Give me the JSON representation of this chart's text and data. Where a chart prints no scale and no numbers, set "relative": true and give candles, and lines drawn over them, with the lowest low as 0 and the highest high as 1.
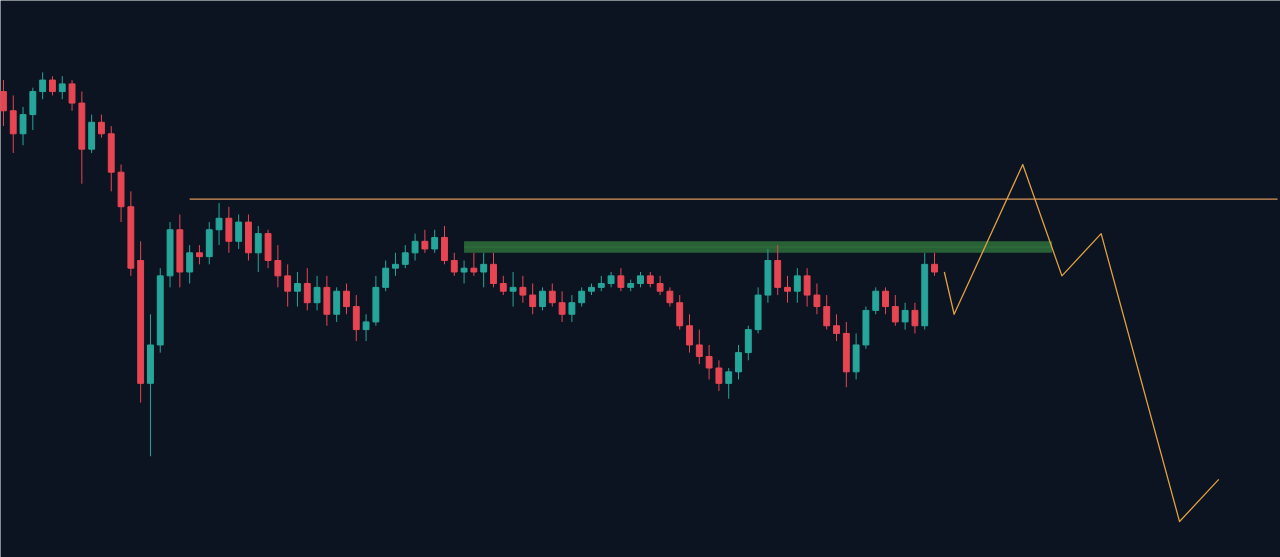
{
  "chart_data": {
    "type": "candlestick",
    "relative": true,
    "tick_labels": false,
    "grid": false,
    "categories": [
      null,
      null,
      null,
      null,
      null,
      null,
      null,
      null,
      null,
      null,
      null,
      null,
      null,
      null,
      null,
      null,
      null,
      null,
      null,
      null,
      null,
      null,
      null,
      null,
      null,
      null,
      null,
      null,
      null,
      null,
      null,
      null,
      null,
      null,
      null,
      null,
      null,
      null,
      null,
      null,
      null,
      null,
      null,
      null,
      null,
      null,
      null,
      null,
      null,
      null,
      null,
      null,
      null,
      null,
      null,
      null,
      null,
      null,
      null,
      null,
      null,
      null,
      null,
      null,
      null,
      null,
      null,
      null,
      null,
      null,
      null,
      null,
      null,
      null,
      null,
      null,
      null,
      null,
      null,
      null,
      null,
      null,
      null,
      null,
      null,
      null,
      null,
      null,
      null,
      null,
      null,
      null,
      null,
      null,
      null,
      null,
      null,
      null,
      null,
      null,
      null,
      null,
      null,
      null,
      null,
      null,
      null,
      null,
      null,
      null,
      null,
      null,
      null,
      null,
      null,
      null,
      null,
      null,
      null,
      null,
      null,
      null,
      null,
      null,
      null,
      null,
      null,
      null,
      null,
      null,
      null
    ],
    "ohlc": [
      [
        0.95,
        0.98,
        0.86,
        0.9
      ],
      [
        0.9,
        0.94,
        0.79,
        0.84
      ],
      [
        0.84,
        0.91,
        0.81,
        0.89
      ],
      [
        0.89,
        0.96,
        0.85,
        0.95
      ],
      [
        0.95,
        1.0,
        0.93,
        0.98
      ],
      [
        0.98,
        0.99,
        0.94,
        0.95
      ],
      [
        0.95,
        0.99,
        0.93,
        0.97
      ],
      [
        0.97,
        0.98,
        0.9,
        0.92
      ],
      [
        0.92,
        0.95,
        0.71,
        0.8
      ],
      [
        0.8,
        0.89,
        0.79,
        0.87
      ],
      [
        0.87,
        0.89,
        0.83,
        0.84
      ],
      [
        0.84,
        0.86,
        0.69,
        0.74
      ],
      [
        0.74,
        0.76,
        0.61,
        0.65
      ],
      [
        0.65,
        0.69,
        0.47,
        0.49
      ],
      [
        0.51,
        0.56,
        0.14,
        0.19
      ],
      [
        0.19,
        0.37,
        0.0,
        0.29
      ],
      [
        0.29,
        0.49,
        0.27,
        0.47
      ],
      [
        0.47,
        0.61,
        0.44,
        0.59
      ],
      [
        0.59,
        0.63,
        0.44,
        0.48
      ],
      [
        0.48,
        0.55,
        0.45,
        0.53
      ],
      [
        0.53,
        0.55,
        0.5,
        0.52
      ],
      [
        0.52,
        0.61,
        0.5,
        0.59
      ],
      [
        0.59,
        0.66,
        0.55,
        0.62
      ],
      [
        0.62,
        0.65,
        0.53,
        0.56
      ],
      [
        0.56,
        0.63,
        0.54,
        0.61
      ],
      [
        0.61,
        0.63,
        0.51,
        0.53
      ],
      [
        0.53,
        0.6,
        0.48,
        0.58
      ],
      [
        0.58,
        0.59,
        0.49,
        0.51
      ],
      [
        0.51,
        0.55,
        0.44,
        0.47
      ],
      [
        0.47,
        0.5,
        0.39,
        0.43
      ],
      [
        0.43,
        0.48,
        0.39,
        0.45
      ],
      [
        0.45,
        0.49,
        0.38,
        0.4
      ],
      [
        0.4,
        0.47,
        0.38,
        0.44
      ],
      [
        0.44,
        0.47,
        0.34,
        0.37
      ],
      [
        0.37,
        0.44,
        0.35,
        0.43
      ],
      [
        0.43,
        0.45,
        0.37,
        0.39
      ],
      [
        0.39,
        0.42,
        0.3,
        0.33
      ],
      [
        0.33,
        0.37,
        0.3,
        0.35
      ],
      [
        0.35,
        0.47,
        0.34,
        0.44
      ],
      [
        0.44,
        0.51,
        0.43,
        0.49
      ],
      [
        0.49,
        0.53,
        0.47,
        0.5
      ],
      [
        0.5,
        0.55,
        0.49,
        0.53
      ],
      [
        0.53,
        0.58,
        0.51,
        0.56
      ],
      [
        0.56,
        0.59,
        0.53,
        0.54
      ],
      [
        0.54,
        0.59,
        0.53,
        0.57
      ],
      [
        0.57,
        0.6,
        0.5,
        0.51
      ],
      [
        0.51,
        0.53,
        0.47,
        0.48
      ],
      [
        0.48,
        0.51,
        0.45,
        0.49
      ],
      [
        0.49,
        0.53,
        0.47,
        0.48
      ],
      [
        0.48,
        0.53,
        0.44,
        0.5
      ],
      [
        0.5,
        0.53,
        0.44,
        0.45
      ],
      [
        0.45,
        0.47,
        0.42,
        0.43
      ],
      [
        0.43,
        0.48,
        0.39,
        0.44
      ],
      [
        0.44,
        0.47,
        0.4,
        0.42
      ],
      [
        0.42,
        0.45,
        0.37,
        0.39
      ],
      [
        0.39,
        0.44,
        0.38,
        0.43
      ],
      [
        0.43,
        0.45,
        0.39,
        0.4
      ],
      [
        0.4,
        0.43,
        0.35,
        0.37
      ],
      [
        0.37,
        0.42,
        0.35,
        0.4
      ],
      [
        0.4,
        0.44,
        0.39,
        0.43
      ],
      [
        0.43,
        0.45,
        0.42,
        0.44
      ],
      [
        0.44,
        0.47,
        0.43,
        0.45
      ],
      [
        0.45,
        0.48,
        0.44,
        0.47
      ],
      [
        0.47,
        0.49,
        0.43,
        0.44
      ],
      [
        0.44,
        0.46,
        0.43,
        0.45
      ],
      [
        0.45,
        0.48,
        0.44,
        0.47
      ],
      [
        0.47,
        0.48,
        0.44,
        0.45
      ],
      [
        0.45,
        0.47,
        0.42,
        0.43
      ],
      [
        0.43,
        0.44,
        0.39,
        0.4
      ],
      [
        0.4,
        0.42,
        0.33,
        0.34
      ],
      [
        0.34,
        0.37,
        0.27,
        0.29
      ],
      [
        0.29,
        0.33,
        0.24,
        0.26
      ],
      [
        0.26,
        0.29,
        0.2,
        0.23
      ],
      [
        0.23,
        0.25,
        0.17,
        0.19
      ],
      [
        0.19,
        0.23,
        0.15,
        0.22
      ],
      [
        0.22,
        0.29,
        0.2,
        0.27
      ],
      [
        0.27,
        0.34,
        0.25,
        0.33
      ],
      [
        0.33,
        0.44,
        0.32,
        0.42
      ],
      [
        0.42,
        0.54,
        0.4,
        0.51
      ],
      [
        0.51,
        0.55,
        0.42,
        0.44
      ],
      [
        0.44,
        0.47,
        0.4,
        0.43
      ],
      [
        0.43,
        0.49,
        0.4,
        0.47
      ],
      [
        0.47,
        0.49,
        0.39,
        0.42
      ],
      [
        0.42,
        0.45,
        0.37,
        0.39
      ],
      [
        0.39,
        0.42,
        0.33,
        0.34
      ],
      [
        0.34,
        0.37,
        0.3,
        0.32
      ],
      [
        0.32,
        0.35,
        0.18,
        0.22
      ],
      [
        0.22,
        0.32,
        0.2,
        0.29
      ],
      [
        0.29,
        0.39,
        0.28,
        0.38
      ],
      [
        0.38,
        0.44,
        0.37,
        0.43
      ],
      [
        0.43,
        0.44,
        0.37,
        0.39
      ],
      [
        0.39,
        0.42,
        0.34,
        0.35
      ],
      [
        0.35,
        0.4,
        0.33,
        0.38
      ],
      [
        0.38,
        0.4,
        0.32,
        0.34
      ],
      [
        0.34,
        0.53,
        0.33,
        0.5
      ],
      [
        0.5,
        0.53,
        0.47,
        0.48
      ],
      null,
      null,
      null,
      null,
      null,
      null,
      null,
      null,
      null,
      null,
      null,
      null,
      null,
      null,
      null,
      null,
      null,
      null,
      null,
      null,
      null,
      null,
      null,
      null,
      null,
      null,
      null,
      null,
      null,
      null,
      null,
      null,
      null,
      null,
      null
    ],
    "colors": [
      "#e84552",
      "#e84552",
      "#26a69a",
      "#26a69a",
      "#26a69a",
      "#e84552",
      "#26a69a",
      "#e84552",
      "#e84552",
      "#26a69a",
      "#e84552",
      "#e84552",
      "#e84552",
      "#e84552",
      "#e84552",
      "#26a69a",
      "#26a69a",
      "#26a69a",
      "#e84552",
      "#26a69a",
      "#e84552",
      "#26a69a",
      "#26a69a",
      "#e84552",
      "#26a69a",
      "#e84552",
      "#26a69a",
      "#e84552",
      "#e84552",
      "#e84552",
      "#26a69a",
      "#e84552",
      "#26a69a",
      "#e84552",
      "#26a69a",
      "#e84552",
      "#e84552",
      "#26a69a",
      "#26a69a",
      "#26a69a",
      "#26a69a",
      "#26a69a",
      "#26a69a",
      "#e84552",
      "#26a69a",
      "#e84552",
      "#e84552",
      "#26a69a",
      "#e84552",
      "#26a69a",
      "#e84552",
      "#e84552",
      "#26a69a",
      "#e84552",
      "#e84552",
      "#26a69a",
      "#e84552",
      "#e84552",
      "#26a69a",
      "#26a69a",
      "#26a69a",
      "#26a69a",
      "#26a69a",
      "#e84552",
      "#26a69a",
      "#26a69a",
      "#e84552",
      "#e84552",
      "#e84552",
      "#e84552",
      "#e84552",
      "#e84552",
      "#e84552",
      "#e84552",
      "#26a69a",
      "#26a69a",
      "#26a69a",
      "#26a69a",
      "#26a69a",
      "#e84552",
      "#e84552",
      "#26a69a",
      "#e84552",
      "#e84552",
      "#e84552",
      "#e84552",
      "#e84552",
      "#26a69a",
      "#26a69a",
      "#26a69a",
      "#e84552",
      "#e84552",
      "#26a69a",
      "#e84552",
      "#26a69a",
      "#e84552",
      null,
      null,
      null,
      null,
      null,
      null,
      null,
      null,
      null,
      null,
      null,
      null,
      null,
      null,
      null,
      null,
      null,
      null,
      null,
      null,
      null,
      null,
      null,
      null,
      null,
      null,
      null,
      null,
      null,
      null,
      null,
      null,
      null,
      null,
      null
    ],
    "series": [
      {
        "type": "line",
        "color": "#d9955a",
        "values": [
          null,
          null,
          null,
          null,
          null,
          null,
          null,
          null,
          null,
          null,
          null,
          null,
          null,
          null,
          null,
          null,
          null,
          null,
          null,
          0.67,
          0.67,
          0.67,
          0.67,
          0.67,
          0.67,
          0.67,
          0.67,
          0.67,
          0.67,
          0.67,
          0.67,
          0.67,
          0.67,
          0.67,
          0.67,
          0.67,
          0.67,
          0.67,
          0.67,
          0.67,
          0.67,
          0.67,
          0.67,
          0.67,
          0.67,
          0.67,
          0.67,
          0.67,
          0.67,
          0.67,
          0.67,
          0.67,
          0.67,
          0.67,
          0.67,
          0.67,
          0.67,
          0.67,
          0.67,
          0.67,
          0.67,
          0.67,
          0.67,
          0.67,
          0.67,
          0.67,
          0.67,
          0.67,
          0.67,
          0.67,
          0.67,
          0.67,
          0.67,
          0.67,
          0.67,
          0.67,
          0.67,
          0.67,
          0.67,
          0.67,
          0.67,
          0.67,
          0.67,
          0.67,
          0.67,
          0.67,
          0.67,
          0.67,
          0.67,
          0.67,
          0.67,
          0.67,
          0.67,
          0.67,
          0.67,
          0.67,
          0.67,
          0.67,
          0.67,
          0.67,
          0.67,
          0.67,
          0.67,
          0.67,
          0.67,
          0.67,
          0.67,
          0.67,
          0.67,
          0.67,
          0.67,
          0.67,
          0.67,
          0.67,
          0.67,
          0.67,
          0.67,
          0.67,
          0.67,
          0.67,
          0.67,
          0.67,
          0.67,
          0.67,
          0.67,
          0.67,
          0.67,
          0.67,
          0.67,
          0.67,
          0.67
        ]
      },
      {
        "type": "line",
        "color": "#2f6e3b",
        "upper": [
          null,
          null,
          null,
          null,
          null,
          null,
          null,
          null,
          null,
          null,
          null,
          null,
          null,
          null,
          null,
          null,
          null,
          null,
          null,
          null,
          null,
          null,
          null,
          null,
          null,
          null,
          null,
          null,
          null,
          null,
          null,
          null,
          null,
          null,
          null,
          null,
          null,
          null,
          null,
          null,
          null,
          null,
          null,
          null,
          null,
          null,
          null,
          0.56,
          0.56,
          0.56,
          0.56,
          0.56,
          0.56,
          0.56,
          0.56,
          0.56,
          0.56,
          0.56,
          0.56,
          0.56,
          0.56,
          0.56,
          0.56,
          0.56,
          0.56,
          0.56,
          0.56,
          0.56,
          0.56,
          0.56,
          0.56,
          0.56,
          0.56,
          0.56,
          0.56,
          0.56,
          0.56,
          0.56,
          0.56,
          0.56,
          0.56,
          0.56,
          0.56,
          0.56,
          0.56,
          0.56,
          0.56,
          0.56,
          0.56,
          0.56,
          0.56,
          0.56,
          0.56,
          0.56,
          0.56,
          0.56,
          0.56,
          0.56,
          0.56,
          0.56,
          0.56,
          0.56,
          0.56,
          0.56,
          0.56,
          0.56,
          0.56,
          0.56,
          null,
          null,
          null,
          null,
          null,
          null,
          null,
          null,
          null,
          null,
          null,
          null,
          null,
          null,
          null,
          null,
          null,
          null,
          null,
          null,
          null,
          null,
          null
        ],
        "values": [
          null,
          null,
          null,
          null,
          null,
          null,
          null,
          null,
          null,
          null,
          null,
          null,
          null,
          null,
          null,
          null,
          null,
          null,
          null,
          null,
          null,
          null,
          null,
          null,
          null,
          null,
          null,
          null,
          null,
          null,
          null,
          null,
          null,
          null,
          null,
          null,
          null,
          null,
          null,
          null,
          null,
          null,
          null,
          null,
          null,
          null,
          null,
          0.545,
          0.545,
          0.545,
          0.545,
          0.545,
          0.545,
          0.545,
          0.545,
          0.545,
          0.545,
          0.545,
          0.545,
          0.545,
          0.545,
          0.545,
          0.545,
          0.545,
          0.545,
          0.545,
          0.545,
          0.545,
          0.545,
          0.545,
          0.545,
          0.545,
          0.545,
          0.545,
          0.545,
          0.545,
          0.545,
          0.545,
          0.545,
          0.545,
          0.545,
          0.545,
          0.545,
          0.545,
          0.545,
          0.545,
          0.545,
          0.545,
          0.545,
          0.545,
          0.545,
          0.545,
          0.545,
          0.545,
          0.545,
          0.545,
          0.545,
          0.545,
          0.545,
          0.545,
          0.545,
          0.545,
          0.545,
          0.545,
          0.545,
          0.545,
          0.545,
          0.545,
          null,
          null,
          null,
          null,
          null,
          null,
          null,
          null,
          null,
          null,
          null,
          null,
          null,
          null,
          null,
          null,
          null,
          null,
          null,
          null,
          null,
          null,
          null
        ],
        "lower": [
          null,
          null,
          null,
          null,
          null,
          null,
          null,
          null,
          null,
          null,
          null,
          null,
          null,
          null,
          null,
          null,
          null,
          null,
          null,
          null,
          null,
          null,
          null,
          null,
          null,
          null,
          null,
          null,
          null,
          null,
          null,
          null,
          null,
          null,
          null,
          null,
          null,
          null,
          null,
          null,
          null,
          null,
          null,
          null,
          null,
          null,
          null,
          0.53,
          0.53,
          0.53,
          0.53,
          0.53,
          0.53,
          0.53,
          0.53,
          0.53,
          0.53,
          0.53,
          0.53,
          0.53,
          0.53,
          0.53,
          0.53,
          0.53,
          0.53,
          0.53,
          0.53,
          0.53,
          0.53,
          0.53,
          0.53,
          0.53,
          0.53,
          0.53,
          0.53,
          0.53,
          0.53,
          0.53,
          0.53,
          0.53,
          0.53,
          0.53,
          0.53,
          0.53,
          0.53,
          0.53,
          0.53,
          0.53,
          0.53,
          0.53,
          0.53,
          0.53,
          0.53,
          0.53,
          0.53,
          0.53,
          0.53,
          0.53,
          0.53,
          0.53,
          0.53,
          0.53,
          0.53,
          0.53,
          0.53,
          0.53,
          0.53,
          0.53,
          null,
          null,
          null,
          null,
          null,
          null,
          null,
          null,
          null,
          null,
          null,
          null,
          null,
          null,
          null,
          null,
          null,
          null,
          null,
          null,
          null,
          null,
          null
        ]
      },
      {
        "type": "line",
        "color": "#e0a040",
        "values": [
          null,
          null,
          null,
          null,
          null,
          null,
          null,
          null,
          null,
          null,
          null,
          null,
          null,
          null,
          null,
          null,
          null,
          null,
          null,
          null,
          null,
          null,
          null,
          null,
          null,
          null,
          null,
          null,
          null,
          null,
          null,
          null,
          null,
          null,
          null,
          null,
          null,
          null,
          null,
          null,
          null,
          null,
          null,
          null,
          null,
          null,
          null,
          null,
          null,
          null,
          null,
          null,
          null,
          null,
          null,
          null,
          null,
          null,
          null,
          null,
          null,
          null,
          null,
          null,
          null,
          null,
          null,
          null,
          null,
          null,
          null,
          null,
          null,
          null,
          null,
          null,
          null,
          null,
          null,
          null,
          null,
          null,
          null,
          null,
          null,
          null,
          null,
          null,
          null,
          null,
          null,
          null,
          null,
          null,
          null,
          null,
          0.48,
          0.37,
          null,
          null,
          null,
          null,
          null,
          null,
          0.76,
          null,
          null,
          null,
          0.47,
          null,
          null,
          null,
          0.58,
          null,
          null,
          null,
          null,
          null,
          null,
          null,
          -0.17,
          null,
          null,
          null,
          -0.06,
          null,
          null,
          null,
          null,
          null,
          null
        ]
      }
    ]
  }
}
